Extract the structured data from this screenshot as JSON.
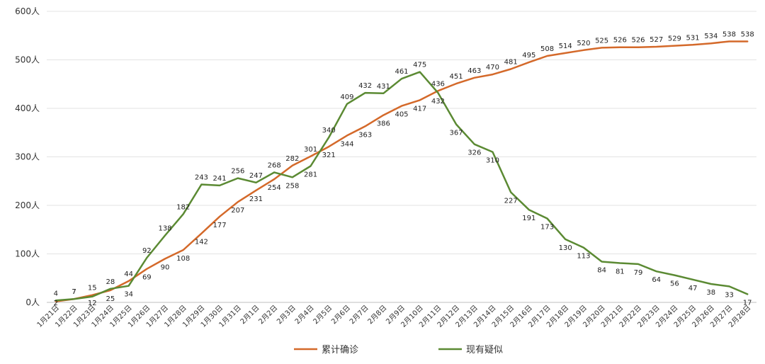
{
  "chart_data": {
    "type": "line",
    "categories": [
      "1月21日",
      "1月22日",
      "1月23日",
      "1月24日",
      "1月25日",
      "1月26日",
      "1月27日",
      "1月28日",
      "1月29日",
      "1月30日",
      "1月31日",
      "2月1日",
      "2月2日",
      "2月3日",
      "2月4日",
      "2月5日",
      "2月6日",
      "2月7日",
      "2月8日",
      "2月9日",
      "2月10日",
      "2月11日",
      "2月12日",
      "2月13日",
      "2月14日",
      "2月15日",
      "2月16日",
      "2月17日",
      "2月18日",
      "2月19日",
      "2月20日",
      "2月21日",
      "2月22日",
      "2月23日",
      "2月24日",
      "2月25日",
      "2月26日",
      "2月27日",
      "2月28日"
    ],
    "series": [
      {
        "name": "累计确诊",
        "color": "#D4692A",
        "values": [
          2,
          7,
          15,
          25,
          44,
          69,
          90,
          108,
          142,
          177,
          207,
          231,
          254,
          282,
          301,
          321,
          344,
          363,
          386,
          405,
          417,
          436,
          451,
          463,
          470,
          481,
          495,
          508,
          514,
          520,
          525,
          526,
          526,
          527,
          529,
          531,
          534,
          538,
          538
        ]
      },
      {
        "name": "现有疑似",
        "color": "#5B8A33",
        "values": [
          4,
          7,
          12,
          28,
          34,
          92,
          138,
          182,
          243,
          241,
          256,
          247,
          268,
          258,
          281,
          340,
          409,
          432,
          431,
          461,
          475,
          432,
          367,
          326,
          310,
          227,
          191,
          173,
          130,
          113,
          84,
          81,
          79,
          64,
          56,
          47,
          38,
          33,
          17
        ]
      }
    ],
    "yticks": [
      "0人",
      "100人",
      "200人",
      "300人",
      "400人",
      "500人",
      "600人"
    ],
    "ylim": [
      0,
      600
    ],
    "grid": true,
    "legend_position": "bottom-center"
  }
}
